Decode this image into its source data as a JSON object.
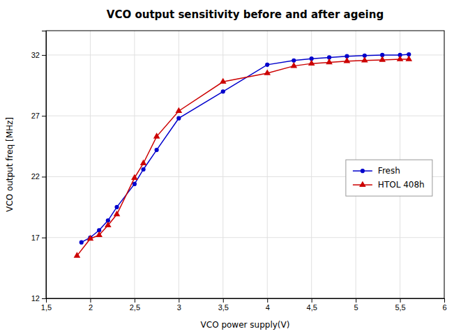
{
  "chart_data": {
    "type": "line",
    "title": "VCO output sensitivity before and after ageing",
    "x_label": "VCO power supply(V)",
    "y_label": "VCO output freq [MHz]",
    "xlim": [
      1.5,
      6.0
    ],
    "ylim": [
      12,
      34
    ],
    "xticks": [
      {
        "value": 1.5,
        "label": "1,5"
      },
      2,
      {
        "value": 2.5,
        "label": "2,5"
      },
      3,
      {
        "value": 3.5,
        "label": "3,5"
      },
      4,
      {
        "value": 4.5,
        "label": "4,5"
      },
      5,
      {
        "value": 5.5,
        "label": "5,5"
      },
      6
    ],
    "yticks": [
      12,
      17,
      22,
      27,
      32
    ],
    "grid": true,
    "legend": "right",
    "series": [
      {
        "name": "Fresh",
        "color": "#0000cc",
        "marker": "circle",
        "x": [
          1.9,
          2.0,
          2.1,
          2.2,
          2.3,
          2.5,
          2.6,
          2.75,
          3.0,
          3.5,
          4.0,
          4.3,
          4.5,
          4.7,
          4.9,
          5.1,
          5.3,
          5.5,
          5.6
        ],
        "values": [
          16.6,
          17.0,
          17.6,
          18.4,
          19.5,
          21.4,
          22.6,
          24.2,
          26.8,
          29.0,
          31.2,
          31.55,
          31.7,
          31.8,
          31.9,
          31.95,
          32.0,
          32.0,
          32.05
        ]
      },
      {
        "name": "HTOL 408h",
        "color": "#cc0000",
        "marker": "triangle",
        "x": [
          1.85,
          2.0,
          2.1,
          2.2,
          2.3,
          2.5,
          2.6,
          2.75,
          3.0,
          3.5,
          4.0,
          4.3,
          4.5,
          4.7,
          4.9,
          5.1,
          5.3,
          5.5,
          5.6
        ],
        "values": [
          15.5,
          16.9,
          17.2,
          18.0,
          18.9,
          21.9,
          23.1,
          25.3,
          27.4,
          29.8,
          30.5,
          31.1,
          31.3,
          31.4,
          31.5,
          31.55,
          31.6,
          31.65,
          31.65
        ]
      }
    ]
  }
}
